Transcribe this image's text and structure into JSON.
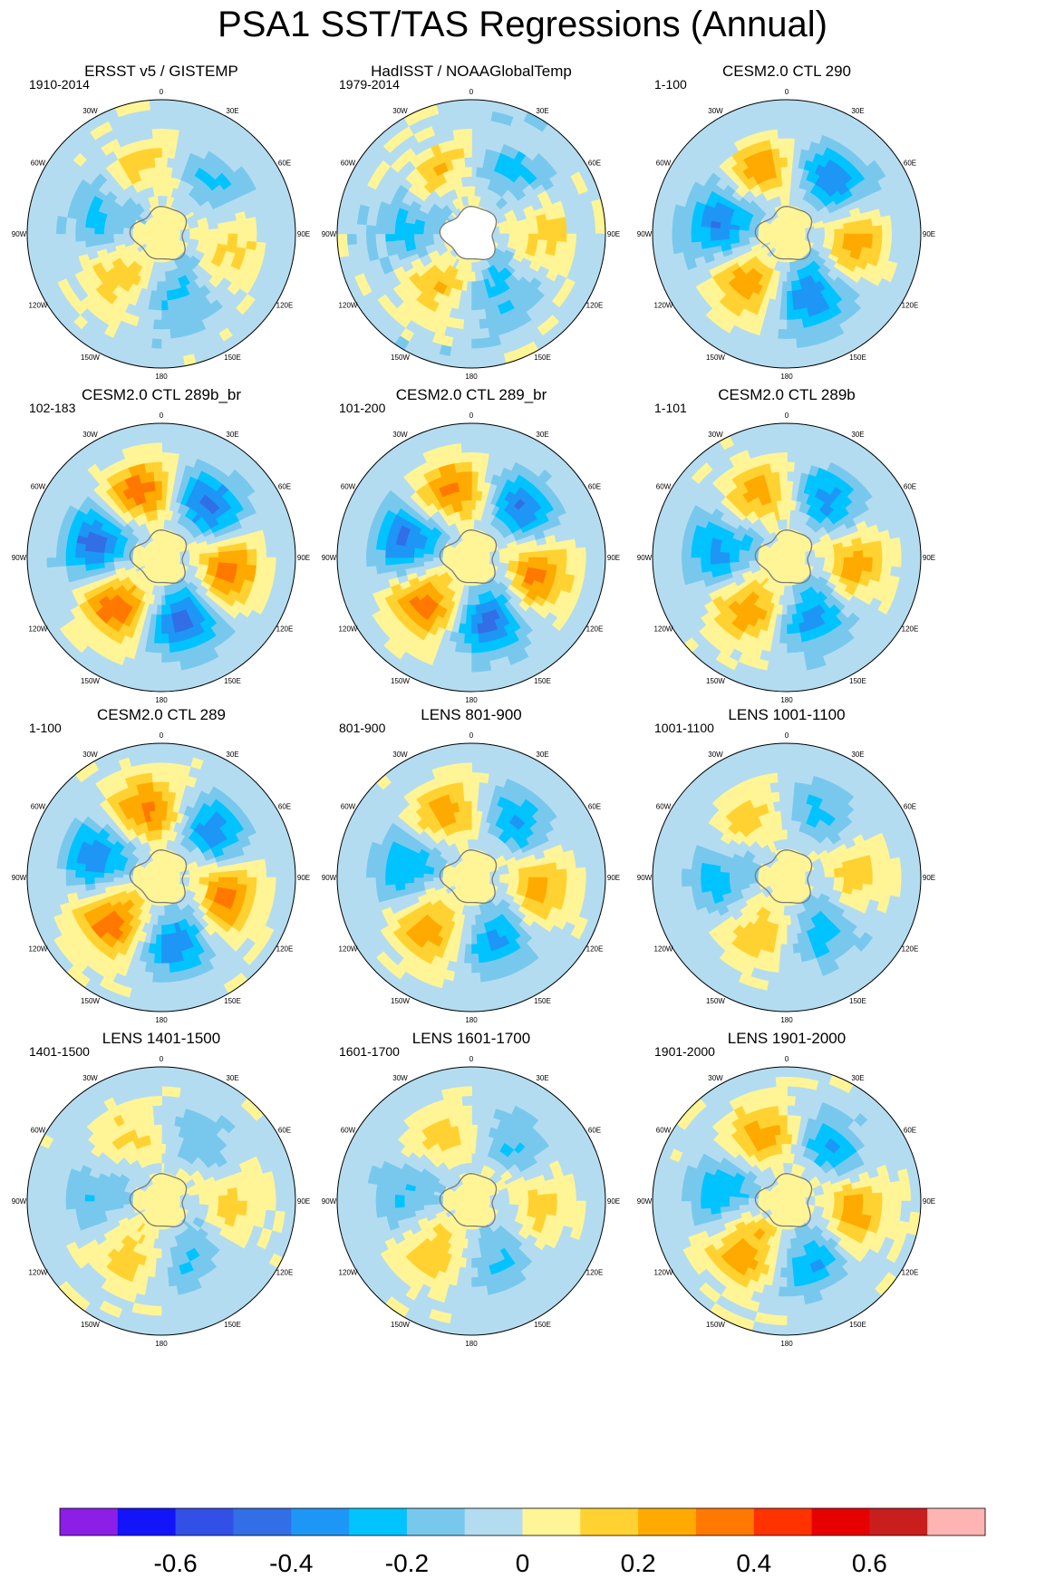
{
  "figure": {
    "title": "PSA1 SST/TAS Regressions (Annual)"
  },
  "lon_labels": [
    "0",
    "30E",
    "60E",
    "90E",
    "120E",
    "150E",
    "180",
    "150W",
    "120W",
    "90W",
    "60W",
    "30W"
  ],
  "colors": {
    "land": "#ffffff",
    "coast": "#7a7a7a",
    "scale": [
      "#8c1ee6",
      "#1414fa",
      "#3250e6",
      "#326ee6",
      "#1e96f5",
      "#00c3ff",
      "#78c8ee",
      "#b4dcf0",
      "#fff596",
      "#ffd232",
      "#ffaa00",
      "#ff7800",
      "#ff3200",
      "#e60000",
      "#c81e1e",
      "#ffb4b4"
    ]
  },
  "panels": [
    {
      "title": "ERSST v5 / GISTEMP",
      "period": "1910-2014",
      "psa_center": -0.04,
      "psa_amp": 0.18,
      "rot": 0,
      "noise": 0.05,
      "sp_land": false
    },
    {
      "title": "HadISST / NOAAGlobalTemp",
      "period": "1979-2014",
      "psa_center": -0.04,
      "psa_amp": 0.2,
      "rot": 0.2,
      "noise": 0.07,
      "sp_land": true
    },
    {
      "title": "CESM2.0 CTL 290",
      "period": "1-100",
      "psa_center": -0.06,
      "psa_amp": 0.32,
      "rot": 0.1,
      "noise": 0.03,
      "sp_land": false
    },
    {
      "title": "CESM2.0 CTL 289b_br",
      "period": "102-183",
      "psa_center": -0.04,
      "psa_amp": 0.4,
      "rot": 0.05,
      "noise": 0.03,
      "sp_land": false
    },
    {
      "title": "CESM2.0 CTL 289_br",
      "period": "101-200",
      "psa_center": -0.04,
      "psa_amp": 0.38,
      "rot": 0.0,
      "noise": 0.03,
      "sp_land": false
    },
    {
      "title": "CESM2.0 CTL 289b",
      "period": "1-101",
      "psa_center": -0.04,
      "psa_amp": 0.3,
      "rot": 0.15,
      "noise": 0.04,
      "sp_land": false
    },
    {
      "title": "CESM2.0 CTL 289",
      "period": "1-100",
      "psa_center": -0.02,
      "psa_amp": 0.36,
      "rot": -0.05,
      "noise": 0.03,
      "sp_land": false
    },
    {
      "title": "LENS 801-900",
      "period": "801-900",
      "psa_center": -0.03,
      "psa_amp": 0.28,
      "rot": 0.1,
      "noise": 0.03,
      "sp_land": false
    },
    {
      "title": "LENS 1001-1100",
      "period": "1001-1100",
      "psa_center": -0.04,
      "psa_amp": 0.2,
      "rot": 0.3,
      "noise": 0.03,
      "sp_land": false
    },
    {
      "title": "LENS 1401-1500",
      "period": "1401-1500",
      "psa_center": -0.03,
      "psa_amp": 0.16,
      "rot": 0.2,
      "noise": 0.04,
      "sp_land": false
    },
    {
      "title": "LENS 1601-1700",
      "period": "1601-1700",
      "psa_center": -0.03,
      "psa_amp": 0.18,
      "rot": 0.15,
      "noise": 0.03,
      "sp_land": false
    },
    {
      "title": "LENS 1901-2000",
      "period": "1901-2000",
      "psa_center": -0.02,
      "psa_amp": 0.28,
      "rot": 0.1,
      "noise": 0.04,
      "sp_land": false
    }
  ],
  "colorbar": {
    "levels": [
      -0.7,
      -0.6,
      -0.5,
      -0.4,
      -0.3,
      -0.2,
      -0.1,
      0,
      0.1,
      0.2,
      0.3,
      0.4,
      0.5,
      0.6,
      0.7
    ],
    "tick_labels": [
      {
        "value": -0.6,
        "text": "-0.6"
      },
      {
        "value": -0.4,
        "text": "-0.4"
      },
      {
        "value": -0.2,
        "text": "-0.2"
      },
      {
        "value": 0,
        "text": "0"
      },
      {
        "value": 0.2,
        "text": "0.2"
      },
      {
        "value": 0.4,
        "text": "0.4"
      },
      {
        "value": 0.6,
        "text": "0.6"
      }
    ]
  }
}
